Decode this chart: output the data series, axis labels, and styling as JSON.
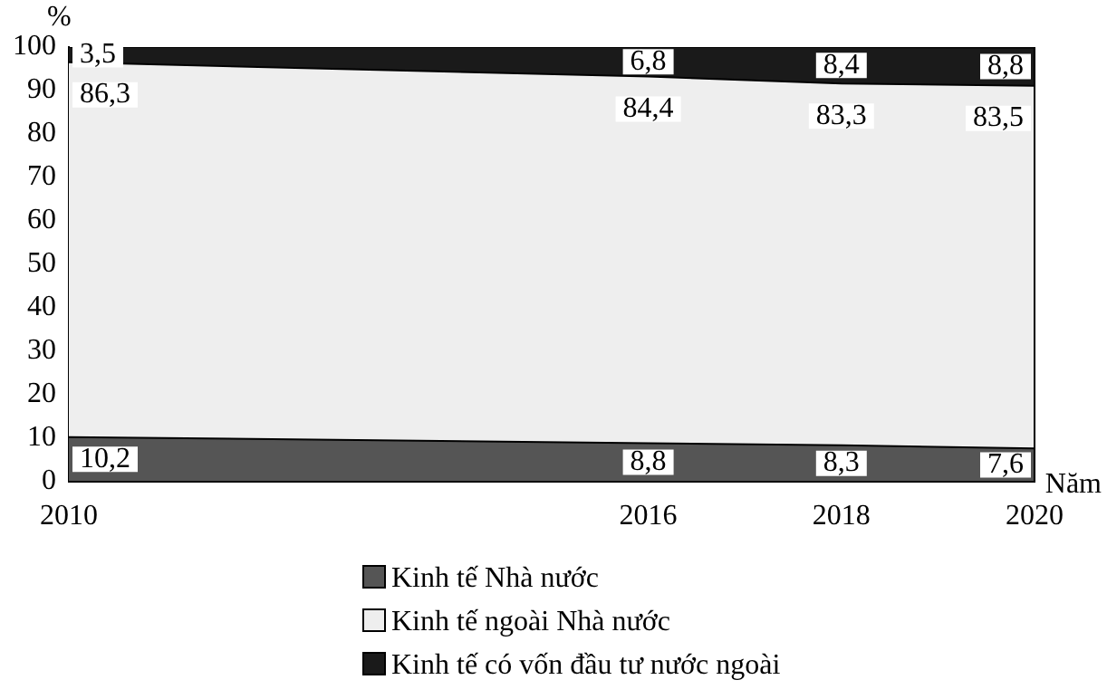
{
  "chart_data": {
    "type": "area",
    "stacked": true,
    "xlabel": "Năm",
    "ylabel": "%",
    "x": [
      2010,
      2016,
      2018,
      2020
    ],
    "xlim": [
      2010,
      2020
    ],
    "xticks": [
      2010,
      2016,
      2018,
      2020
    ],
    "ylim": [
      0,
      100
    ],
    "yticks": [
      0,
      10,
      20,
      30,
      40,
      50,
      60,
      70,
      80,
      90,
      100
    ],
    "grid": false,
    "legend": "bottom",
    "series": [
      {
        "name": "Kinh tế Nhà nước",
        "color": "#555555",
        "values": [
          10.2,
          8.8,
          8.3,
          7.6
        ],
        "value_labels": [
          "10,2",
          "8,8",
          "8,3",
          "7,6"
        ]
      },
      {
        "name": "Kinh tế ngoài Nhà nước",
        "color": "#eeeeee",
        "values": [
          86.3,
          84.4,
          83.3,
          83.5
        ],
        "value_labels": [
          "86,3",
          "84,4",
          "83,3",
          "83,5"
        ]
      },
      {
        "name": "Kinh tế có vốn đầu tư nước ngoài",
        "color": "#1a1a1a",
        "values": [
          3.5,
          6.8,
          8.4,
          8.8
        ],
        "value_labels": [
          "3,5",
          "6,8",
          "8,4",
          "8,8"
        ]
      }
    ]
  }
}
